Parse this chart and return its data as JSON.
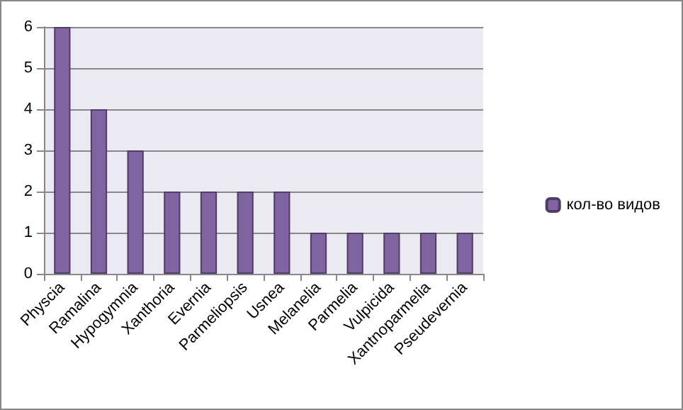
{
  "chart_data": {
    "type": "bar",
    "categories": [
      "Physcia",
      "Ramalina",
      "Hypogymnia",
      "Xanthoria",
      "Evernia",
      "Parmeliopsis",
      "Usnea",
      "Melanelia",
      "Parmelia",
      "Vulpicida",
      "Xantnoparmelia",
      "Pseudevernia"
    ],
    "series": [
      {
        "name": "кол-во видов",
        "color": "#8064a2",
        "values": [
          6,
          4,
          3,
          2,
          2,
          2,
          2,
          1,
          1,
          1,
          1,
          1
        ]
      }
    ],
    "ylim": [
      0,
      6
    ],
    "yticks": [
      0,
      1,
      2,
      3,
      4,
      5,
      6
    ],
    "grid": "y",
    "legend": "right"
  }
}
